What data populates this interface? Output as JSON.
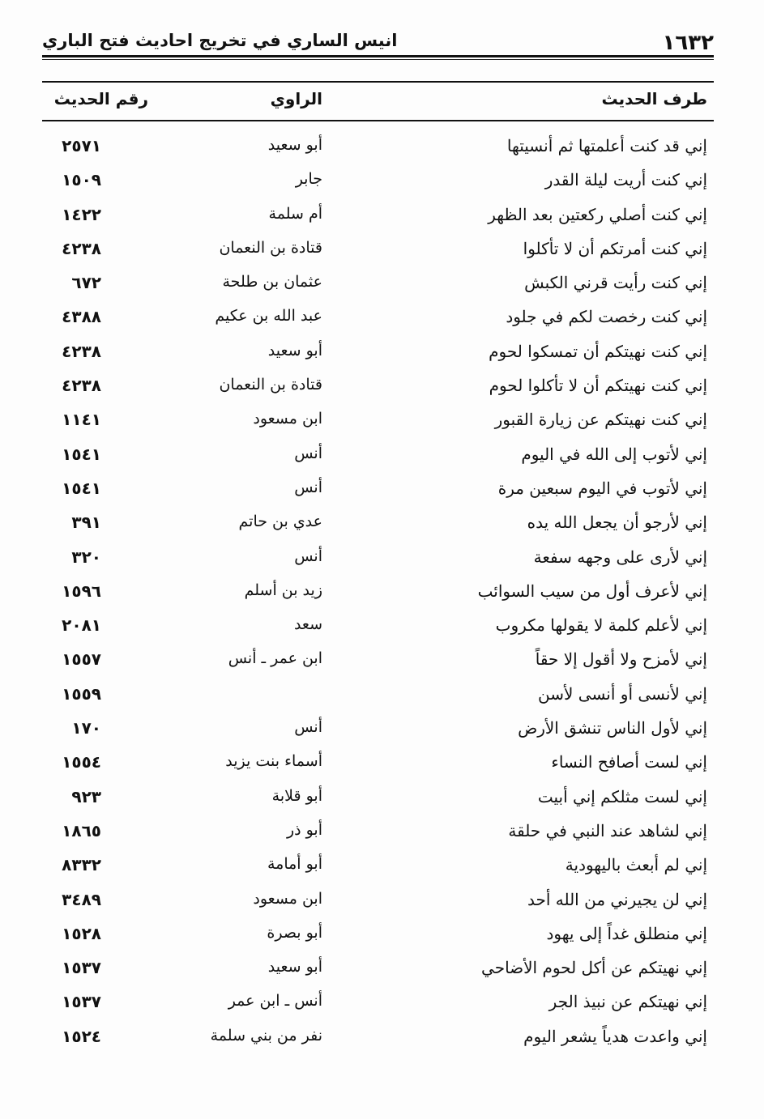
{
  "running_header": {
    "page_number": "١٦٣٢",
    "book_title": "انيس الساري في تخريج احاديث فتح الباري"
  },
  "columns": {
    "text": "طرف الحديث",
    "narrator": "الراوي",
    "number": "رقم الحديث"
  },
  "rows": [
    {
      "text": "إني قد كنت أعلمتها ثم أنسيتها",
      "narrator": "أبو سعيد",
      "number": "٢٥٧١"
    },
    {
      "text": "إني كنت أريت ليلة القدر",
      "narrator": "جابر",
      "number": "١٥٠٩"
    },
    {
      "text": "إني كنت أصلي ركعتين بعد الظهر",
      "narrator": "أم سلمة",
      "number": "١٤٢٢"
    },
    {
      "text": "إني كنت أمرتكم أن لا تأكلوا",
      "narrator": "قتادة بن النعمان",
      "number": "٤٢٣٨"
    },
    {
      "text": "إني كنت رأيت قرني الكبش",
      "narrator": "عثمان بن طلحة",
      "number": "٦٧٢"
    },
    {
      "text": "إني كنت رخصت لكم في جلود",
      "narrator": "عبد الله بن عكيم",
      "number": "٤٣٨٨"
    },
    {
      "text": "إني كنت نهيتكم أن تمسكوا لحوم",
      "narrator": "أبو سعيد",
      "number": "٤٢٣٨"
    },
    {
      "text": "إني كنت نهيتكم أن لا تأكلوا لحوم",
      "narrator": "قتادة بن النعمان",
      "number": "٤٢٣٨"
    },
    {
      "text": "إني كنت نهيتكم عن زيارة القبور",
      "narrator": "ابن مسعود",
      "number": "١١٤١"
    },
    {
      "text": "إني لأتوب إلى الله في اليوم",
      "narrator": "أنس",
      "number": "١٥٤١"
    },
    {
      "text": "إني لأتوب في اليوم سبعين مرة",
      "narrator": "أنس",
      "number": "١٥٤١"
    },
    {
      "text": "إني لأرجو أن يجعل الله يده",
      "narrator": "عدي بن حاتم",
      "number": "٣٩١"
    },
    {
      "text": "إني لأرى على وجهه سفعة",
      "narrator": "أنس",
      "number": "٣٢٠"
    },
    {
      "text": "إني لأعرف أول من سيب السوائب",
      "narrator": "زيد بن أسلم",
      "number": "١٥٩٦"
    },
    {
      "text": "إني لأعلم كلمة لا يقولها مكروب",
      "narrator": "سعد",
      "number": "٢٠٨١"
    },
    {
      "text": "إني لأمزح ولا أقول إلا حقاً",
      "narrator": "ابن عمر ـ أنس",
      "number": "١٥٥٧"
    },
    {
      "text": "إني لأنسى أو أنسى لأسن",
      "narrator": "",
      "number": "١٥٥٩"
    },
    {
      "text": "إني لأول الناس تنشق الأرض",
      "narrator": "أنس",
      "number": "١٧٠"
    },
    {
      "text": "إني لست أصافح النساء",
      "narrator": "أسماء بنت يزيد",
      "number": "١٥٥٤"
    },
    {
      "text": "إني لست مثلكم إني أبيت",
      "narrator": "أبو قلابة",
      "number": "٩٢٣"
    },
    {
      "text": "إني لشاهد عند النبي في حلقة",
      "narrator": "أبو ذر",
      "number": "١٨٦٥"
    },
    {
      "text": "إني لم أبعث باليهودية",
      "narrator": "أبو أمامة",
      "number": "٨٣٣٢"
    },
    {
      "text": "إني لن يجيرني من الله أحد",
      "narrator": "ابن مسعود",
      "number": "٣٤٨٩"
    },
    {
      "text": "إني منطلق غداً إلى يهود",
      "narrator": "أبو بصرة",
      "number": "١٥٢٨"
    },
    {
      "text": "إني نهيتكم عن أكل لحوم الأضاحي",
      "narrator": "أبو سعيد",
      "number": "١٥٣٧"
    },
    {
      "text": "إني نهيتكم عن نبيذ الجر",
      "narrator": "أنس ـ ابن عمر",
      "number": "١٥٣٧"
    },
    {
      "text": "إني واعدت هدياً يشعر اليوم",
      "narrator": "نفر من بني سلمة",
      "number": "١٥٢٤"
    }
  ]
}
